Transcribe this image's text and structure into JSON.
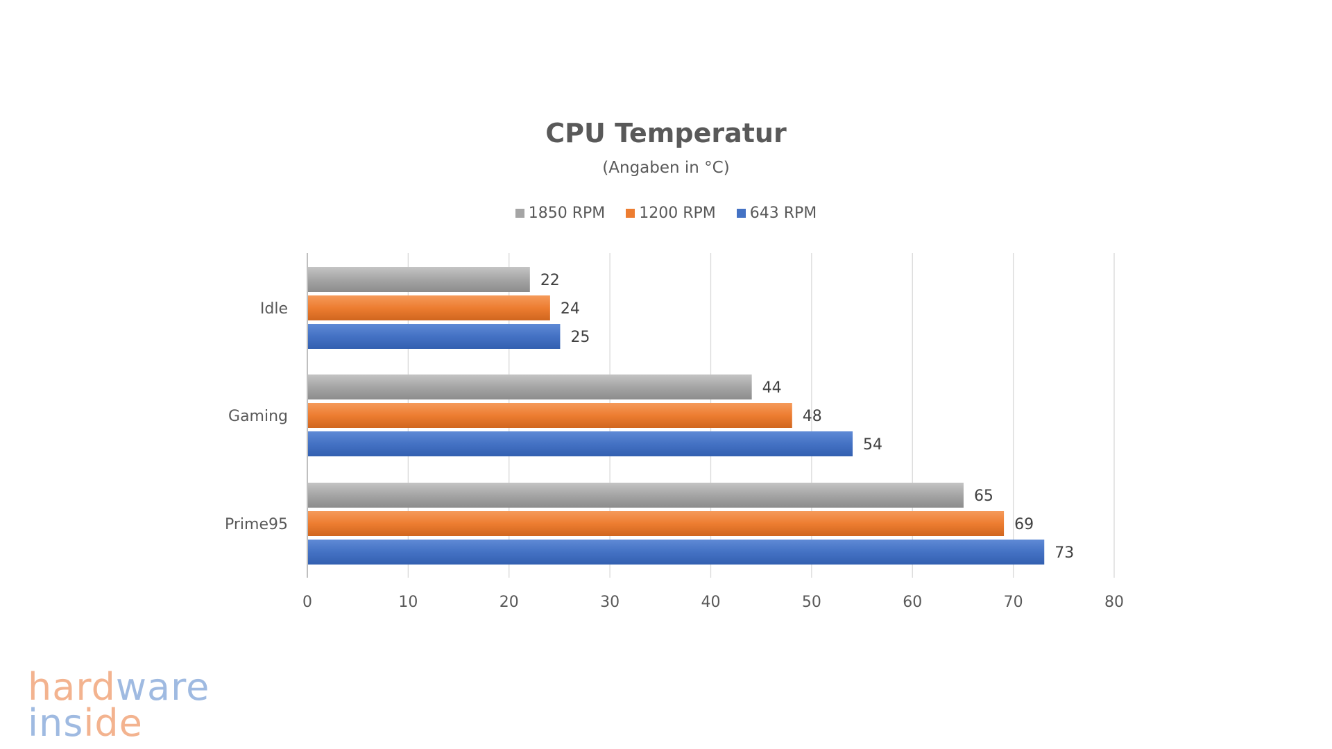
{
  "chart_data": {
    "type": "bar",
    "orientation": "horizontal",
    "title": "CPU Temperatur",
    "subtitle": "(Angaben in °C)",
    "categories": [
      "Idle",
      "Gaming",
      "Prime95"
    ],
    "series": [
      {
        "name": "1850 RPM",
        "color": "#a5a5a5",
        "values": [
          22,
          44,
          65
        ]
      },
      {
        "name": "1200 RPM",
        "color": "#ed7d31",
        "values": [
          24,
          48,
          69
        ]
      },
      {
        "name": "643 RPM",
        "color": "#4472c4",
        "values": [
          25,
          54,
          73
        ]
      }
    ],
    "xlim": [
      0,
      80
    ],
    "xticks": [
      0,
      10,
      20,
      30,
      40,
      50,
      60,
      70,
      80
    ],
    "grid": true,
    "legend_position": "top"
  },
  "watermark": {
    "line1_orange": "hard",
    "line1_blue": "ware",
    "line2_blue": "ins",
    "line2_orange": "ide"
  }
}
